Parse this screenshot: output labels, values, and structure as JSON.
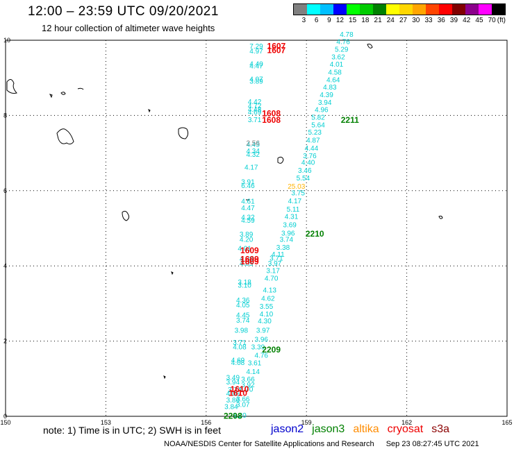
{
  "header": {
    "title": "12:00 – 23:59 UTC 09/20/2021",
    "subtitle": "12 hour collection of altimeter wave heights"
  },
  "legend": {
    "unit": "(ft)",
    "bins": [
      {
        "label": "3",
        "color": "#808080"
      },
      {
        "label": "6",
        "color": "#00ffff"
      },
      {
        "label": "9",
        "color": "#00bfff"
      },
      {
        "label": "12",
        "color": "#0000ff"
      },
      {
        "label": "15",
        "color": "#00ff00"
      },
      {
        "label": "18",
        "color": "#00cc00"
      },
      {
        "label": "21",
        "color": "#008000"
      },
      {
        "label": "24",
        "color": "#ffff00"
      },
      {
        "label": "27",
        "color": "#ffd700"
      },
      {
        "label": "30",
        "color": "#ffa500"
      },
      {
        "label": "33",
        "color": "#ff4500"
      },
      {
        "label": "36",
        "color": "#ff0000"
      },
      {
        "label": "39",
        "color": "#800000"
      },
      {
        "label": "42",
        "color": "#8b008b"
      },
      {
        "label": "45",
        "color": "#ff00ff"
      },
      {
        "label": "70",
        "color": "#000000"
      }
    ]
  },
  "axes": {
    "lon_ticks": [
      "150",
      "153",
      "156",
      "159",
      "162",
      "165"
    ],
    "lat_ticks": [
      "0",
      "2",
      "4",
      "6",
      "8",
      "10"
    ]
  },
  "colors": {
    "swh": "#00ced1",
    "time_red": "#ee0000",
    "time_green": "#008000",
    "grey": "#808080",
    "high": "#ffb300"
  },
  "chart_data": {
    "type": "scatter",
    "x_range": [
      150,
      165
    ],
    "y_range": [
      0,
      10
    ],
    "tracks": [
      {
        "name": "track-A",
        "swh": [
          {
            "lon": 157.5,
            "lat": 9.85,
            "v": "7.29"
          },
          {
            "lon": 157.5,
            "lat": 9.72,
            "v": "4.97"
          },
          {
            "lon": 157.5,
            "lat": 9.38,
            "v": "4.40"
          },
          {
            "lon": 157.5,
            "lat": 9.33,
            "v": "4.47"
          },
          {
            "lon": 157.5,
            "lat": 8.98,
            "v": "4.07"
          },
          {
            "lon": 157.5,
            "lat": 8.92,
            "v": "3.89"
          },
          {
            "lon": 157.45,
            "lat": 8.38,
            "v": "4.42"
          },
          {
            "lon": 157.45,
            "lat": 8.27,
            "v": "4.72"
          },
          {
            "lon": 157.45,
            "lat": 8.17,
            "v": "4.48"
          },
          {
            "lon": 157.45,
            "lat": 8.1,
            "v": "4.69"
          },
          {
            "lon": 157.45,
            "lat": 7.9,
            "v": "3.71"
          },
          {
            "lon": 157.4,
            "lat": 7.24,
            "v": "4.45"
          },
          {
            "lon": 157.4,
            "lat": 7.07,
            "v": "4.34"
          },
          {
            "lon": 157.4,
            "lat": 6.97,
            "v": "4.32"
          },
          {
            "lon": 157.35,
            "lat": 6.63,
            "v": "4.17"
          },
          {
            "lon": 157.25,
            "lat": 6.25,
            "v": "3.91"
          },
          {
            "lon": 157.25,
            "lat": 6.14,
            "v": "6.46"
          },
          {
            "lon": 157.25,
            "lat": 5.73,
            "v": "4.61"
          },
          {
            "lon": 157.25,
            "lat": 5.55,
            "v": "4.47"
          },
          {
            "lon": 157.25,
            "lat": 5.3,
            "v": "4.32"
          },
          {
            "lon": 157.25,
            "lat": 5.22,
            "v": "4.59"
          },
          {
            "lon": 157.2,
            "lat": 4.85,
            "v": "3.89"
          },
          {
            "lon": 157.2,
            "lat": 4.71,
            "v": "4.20"
          },
          {
            "lon": 157.15,
            "lat": 4.47,
            "v": "4.01"
          },
          {
            "lon": 157.2,
            "lat": 4.2,
            "v": "4.38"
          },
          {
            "lon": 157.2,
            "lat": 4.08,
            "v": "4.05"
          },
          {
            "lon": 157.15,
            "lat": 3.58,
            "v": "3.18"
          },
          {
            "lon": 157.15,
            "lat": 3.5,
            "v": "3.10"
          },
          {
            "lon": 157.1,
            "lat": 3.1,
            "v": "4.36"
          },
          {
            "lon": 157.1,
            "lat": 2.97,
            "v": "4.05"
          },
          {
            "lon": 157.1,
            "lat": 2.7,
            "v": "4.45"
          },
          {
            "lon": 157.1,
            "lat": 2.56,
            "v": "3.74"
          },
          {
            "lon": 157.05,
            "lat": 2.3,
            "v": "3.98"
          },
          {
            "lon": 157.0,
            "lat": 1.97,
            "v": "3.71"
          },
          {
            "lon": 157.0,
            "lat": 1.85,
            "v": "4.08"
          },
          {
            "lon": 156.95,
            "lat": 1.5,
            "v": "4.69"
          },
          {
            "lon": 156.95,
            "lat": 1.44,
            "v": "4.08"
          },
          {
            "lon": 156.8,
            "lat": 1.04,
            "v": "3.49"
          },
          {
            "lon": 156.8,
            "lat": 0.92,
            "v": "3.94"
          },
          {
            "lon": 156.85,
            "lat": 0.72,
            "v": "3.74"
          },
          {
            "lon": 156.8,
            "lat": 0.62,
            "v": "4.06"
          },
          {
            "lon": 156.8,
            "lat": 0.44,
            "v": "3.86"
          },
          {
            "lon": 156.75,
            "lat": 0.27,
            "v": "3.84"
          },
          {
            "lon": 157.0,
            "lat": 0.04,
            "v": "3.20"
          },
          {
            "lon": 157.1,
            "lat": 0.32,
            "v": "3.07"
          },
          {
            "lon": 157.1,
            "lat": 0.47,
            "v": "3.66"
          },
          {
            "lon": 157.2,
            "lat": 0.73,
            "v": "4.70"
          },
          {
            "lon": 157.25,
            "lat": 0.85,
            "v": "3.92"
          },
          {
            "lon": 157.25,
            "lat": 1.0,
            "v": "3.66"
          },
          {
            "lon": 157.4,
            "lat": 1.2,
            "v": "4.14"
          },
          {
            "lon": 157.45,
            "lat": 1.43,
            "v": "3.61"
          },
          {
            "lon": 157.65,
            "lat": 1.63,
            "v": "4.76"
          },
          {
            "lon": 157.55,
            "lat": 1.85,
            "v": "3.39"
          },
          {
            "lon": 157.65,
            "lat": 2.06,
            "v": "3.96"
          },
          {
            "lon": 157.7,
            "lat": 2.3,
            "v": "3.97"
          },
          {
            "lon": 157.75,
            "lat": 2.55,
            "v": "4.30"
          },
          {
            "lon": 157.8,
            "lat": 2.73,
            "v": "4.10"
          },
          {
            "lon": 157.8,
            "lat": 2.93,
            "v": "3.55"
          },
          {
            "lon": 157.85,
            "lat": 3.15,
            "v": "4.62"
          },
          {
            "lon": 157.9,
            "lat": 3.37,
            "v": "4.13"
          },
          {
            "lon": 157.95,
            "lat": 3.68,
            "v": "4.70"
          },
          {
            "lon": 158.0,
            "lat": 3.88,
            "v": "3.17"
          },
          {
            "lon": 158.05,
            "lat": 4.08,
            "v": "3.97"
          },
          {
            "lon": 158.1,
            "lat": 4.22,
            "v": "3.71"
          },
          {
            "lon": 158.15,
            "lat": 4.32,
            "v": "4.11"
          },
          {
            "lon": 158.3,
            "lat": 4.5,
            "v": "3.38"
          },
          {
            "lon": 158.4,
            "lat": 4.71,
            "v": "3.74"
          },
          {
            "lon": 158.45,
            "lat": 4.88,
            "v": "3.96"
          },
          {
            "lon": 158.5,
            "lat": 5.1,
            "v": "3.69"
          },
          {
            "lon": 158.55,
            "lat": 5.32,
            "v": "4.31"
          },
          {
            "lon": 158.6,
            "lat": 5.52,
            "v": "5.11"
          },
          {
            "lon": 158.65,
            "lat": 5.74,
            "v": "4.17"
          },
          {
            "lon": 158.75,
            "lat": 5.95,
            "v": "3.75"
          },
          {
            "lon": 158.9,
            "lat": 6.35,
            "v": "5.54"
          },
          {
            "lon": 158.95,
            "lat": 6.55,
            "v": "3.46"
          },
          {
            "lon": 159.05,
            "lat": 6.76,
            "v": "4.40"
          },
          {
            "lon": 159.1,
            "lat": 6.94,
            "v": "3.76"
          },
          {
            "lon": 159.15,
            "lat": 7.14,
            "v": "4.44"
          },
          {
            "lon": 159.2,
            "lat": 7.35,
            "v": "4.87"
          },
          {
            "lon": 159.25,
            "lat": 7.56,
            "v": "5.23"
          },
          {
            "lon": 159.35,
            "lat": 7.76,
            "v": "5.64"
          },
          {
            "lon": 159.35,
            "lat": 7.96,
            "v": "5.82"
          },
          {
            "lon": 159.45,
            "lat": 8.16,
            "v": "4.96"
          },
          {
            "lon": 159.55,
            "lat": 8.36,
            "v": "3.94"
          },
          {
            "lon": 159.6,
            "lat": 8.56,
            "v": "4.39"
          },
          {
            "lon": 159.7,
            "lat": 8.76,
            "v": "4.83"
          },
          {
            "lon": 159.8,
            "lat": 8.96,
            "v": "4.64"
          },
          {
            "lon": 159.85,
            "lat": 9.16,
            "v": "4.58"
          },
          {
            "lon": 159.9,
            "lat": 9.37,
            "v": "4.01"
          },
          {
            "lon": 159.95,
            "lat": 9.57,
            "v": "3.62"
          },
          {
            "lon": 160.05,
            "lat": 9.77,
            "v": "5.29"
          },
          {
            "lon": 160.1,
            "lat": 9.97,
            "v": "4.76"
          },
          {
            "lon": 160.2,
            "lat": 10.17,
            "v": "4.78"
          }
        ],
        "special": [
          {
            "lon": 157.4,
            "lat": 7.28,
            "v": "2.56",
            "color_key": "grey"
          },
          {
            "lon": 158.7,
            "lat": 6.13,
            "v": "25.03",
            "color_key": "high"
          }
        ],
        "time_labels": [
          {
            "lon": 158.1,
            "lat": 9.86,
            "v": "1607",
            "color_key": "time_red"
          },
          {
            "lon": 158.1,
            "lat": 9.75,
            "v": "1607",
            "color_key": "time_red"
          },
          {
            "lon": 157.95,
            "lat": 8.07,
            "v": "1608",
            "color_key": "time_red"
          },
          {
            "lon": 157.95,
            "lat": 7.9,
            "v": "1608",
            "color_key": "time_red"
          },
          {
            "lon": 157.3,
            "lat": 4.43,
            "v": "1609",
            "color_key": "time_red"
          },
          {
            "lon": 157.3,
            "lat": 4.2,
            "v": "1609",
            "color_key": "time_red"
          },
          {
            "lon": 157.3,
            "lat": 4.13,
            "v": "1609",
            "color_key": "time_red"
          },
          {
            "lon": 157.0,
            "lat": 0.74,
            "v": "1610",
            "color_key": "time_red"
          },
          {
            "lon": 156.95,
            "lat": 0.64,
            "v": "1610",
            "color_key": "time_red"
          },
          {
            "lon": 160.3,
            "lat": 7.9,
            "v": "2211",
            "color_key": "time_green"
          },
          {
            "lon": 159.25,
            "lat": 4.87,
            "v": "2210",
            "color_key": "time_green"
          },
          {
            "lon": 157.95,
            "lat": 1.79,
            "v": "2209",
            "color_key": "time_green"
          },
          {
            "lon": 156.8,
            "lat": 0.03,
            "v": "2208",
            "color_key": "time_green"
          }
        ]
      }
    ]
  },
  "footer": {
    "note": "note:  1) Time is in UTC;  2) SWH is in feet",
    "satellites": [
      {
        "name": "jason2",
        "color": "#0000cc"
      },
      {
        "name": "jason3",
        "color": "#008000"
      },
      {
        "name": "altika",
        "color": "#ff8c00"
      },
      {
        "name": "cryosat",
        "color": "#ee0000"
      },
      {
        "name": "s3a",
        "color": "#8b0000"
      }
    ],
    "credit_org": "NOAA/NESDIS Center for Satellite Applications and Research",
    "credit_time": "Sep 23 08:27:45 UTC 2021"
  }
}
